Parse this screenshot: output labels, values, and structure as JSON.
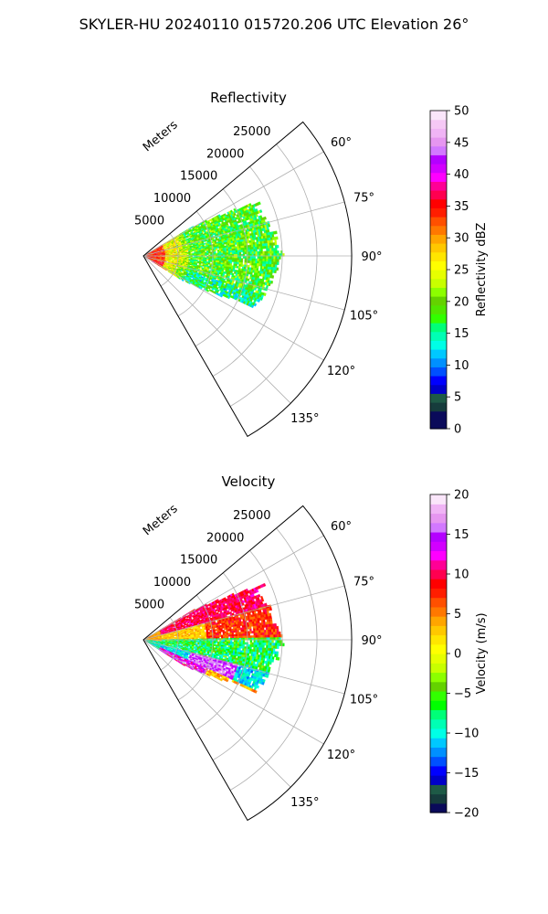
{
  "figure": {
    "suptitle": "SKYLER-HU  20240110  015720.206 UTC Elevation 26°"
  },
  "chart_data": [
    {
      "type": "heatmap",
      "projection": "polar-sector",
      "title": "Reflectivity",
      "range_label": "Meters",
      "range_ticks": [
        5000,
        10000,
        15000,
        20000,
        25000
      ],
      "range_tick_labels": [
        "5000",
        "10000",
        "15000",
        "20000",
        "25000"
      ],
      "range_max": 30000,
      "azimuth_range_deg": [
        50,
        150
      ],
      "azimuth_ticks_deg": [
        60,
        75,
        90,
        105,
        120,
        135
      ],
      "azimuth_tick_labels": [
        "60°",
        "75°",
        "90°",
        "105°",
        "120°",
        "135°"
      ],
      "grid": true,
      "colorbar": {
        "label": "Reflectivity dBZ",
        "min": 0,
        "max": 50,
        "ticks": [
          0,
          5,
          10,
          15,
          20,
          25,
          30,
          35,
          40,
          45,
          50
        ],
        "tick_labels": [
          "0",
          "5",
          "10",
          "15",
          "20",
          "25",
          "30",
          "35",
          "40",
          "45",
          "50"
        ],
        "colors": [
          "#0a0a5a",
          "#0a0a5a",
          "#163c3c",
          "#1e5a46",
          "#0000c8",
          "#0000ff",
          "#0050ff",
          "#0090ff",
          "#00c8ff",
          "#00ffe6",
          "#00ffb4",
          "#00ff78",
          "#32ff00",
          "#50e600",
          "#64d200",
          "#8cff00",
          "#c8ff00",
          "#e6ff00",
          "#ffff00",
          "#ffe600",
          "#ffc800",
          "#ffa500",
          "#ff7800",
          "#ff5000",
          "#ff1e00",
          "#ff0000",
          "#ff0050",
          "#ff0096",
          "#ff00ff",
          "#d200ff",
          "#b400ff",
          "#d278ff",
          "#e696f0",
          "#f0b4f5",
          "#f5c8f5",
          "#fae6fa"
        ]
      },
      "echo": {
        "azimuth_coverage_deg": [
          59,
          122
        ],
        "max_range_m": 20500,
        "description_values": "reflectivity decreasing from ~35 dBZ near radar to ~15-22 dBZ in the mid-range echo"
      }
    },
    {
      "type": "heatmap",
      "projection": "polar-sector",
      "title": "Velocity",
      "range_label": "Meters",
      "range_ticks": [
        5000,
        10000,
        15000,
        20000,
        25000
      ],
      "range_tick_labels": [
        "5000",
        "10000",
        "15000",
        "20000",
        "25000"
      ],
      "range_max": 30000,
      "azimuth_range_deg": [
        50,
        150
      ],
      "azimuth_ticks_deg": [
        60,
        75,
        90,
        105,
        120,
        135
      ],
      "azimuth_tick_labels": [
        "60°",
        "75°",
        "90°",
        "105°",
        "120°",
        "135°"
      ],
      "grid": true,
      "colorbar": {
        "label": "Velocity (m/s)",
        "min": -20,
        "max": 20,
        "ticks": [
          -20,
          -15,
          -10,
          -5,
          0,
          5,
          10,
          15,
          20
        ],
        "tick_labels": [
          "−20",
          "−15",
          "−10",
          "−5",
          "0",
          "5",
          "10",
          "15",
          "20"
        ],
        "colors": [
          "#0a0a5a",
          "#163c3c",
          "#1e5a46",
          "#0000c8",
          "#0000ff",
          "#0050ff",
          "#0090ff",
          "#00c8ff",
          "#00ffe6",
          "#00ffb4",
          "#00ff78",
          "#00ff00",
          "#32ff00",
          "#64d200",
          "#8cff00",
          "#c8ff00",
          "#e6ff00",
          "#ffff00",
          "#ffe600",
          "#ffc800",
          "#ffa500",
          "#ff7800",
          "#ff5000",
          "#ff1e00",
          "#ff0000",
          "#ff0050",
          "#ff0096",
          "#ff00ff",
          "#d200ff",
          "#b400ff",
          "#d278ff",
          "#e696f0",
          "#f0b4f5",
          "#fae6fa"
        ]
      },
      "echo": {
        "azimuth_coverage_deg": [
          59,
          122
        ],
        "max_range_m": 20500,
        "description_values": "receding ~8-12 m/s (orange/red) in north, approaching ~-5 to -10 m/s (green) in center, mixed near radar"
      }
    }
  ]
}
